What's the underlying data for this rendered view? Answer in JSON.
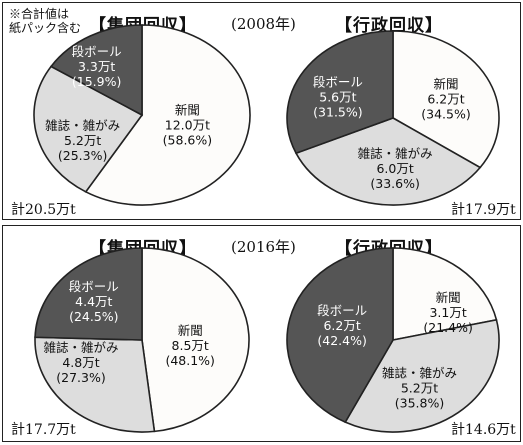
{
  "note": [
    "※合計値は",
    "紙パック含む"
  ],
  "titles": {
    "group": "【集団回収】",
    "admin": "【行政回収】"
  },
  "colors": {
    "newspaper": "#fdfcfa",
    "magazine": "#dddddd",
    "cardboard": "#555555",
    "stroke": "#222222",
    "dark_text": "#ffffff",
    "light_text": "#111111"
  },
  "panels": [
    {
      "year": "(2008年)",
      "group_total": "計20.5万t",
      "admin_total": "計17.9万t"
    },
    {
      "year": "(2016年)",
      "group_total": "計17.7万t",
      "admin_total": "計14.6万t"
    }
  ],
  "chart_data": [
    {
      "type": "pie",
      "title": "【集団回収】",
      "subtitle": "(2008年)",
      "total": "計20.5万t",
      "slices": [
        {
          "label": "新聞",
          "amount": "12.0万t",
          "value": 58.6,
          "pct": "(58.6%)",
          "category": "newspaper"
        },
        {
          "label": "雑誌・雑がみ",
          "amount": "5.2万t",
          "value": 25.3,
          "pct": "(25.3%)",
          "category": "magazine"
        },
        {
          "label": "段ボール",
          "amount": "3.3万t",
          "value": 15.9,
          "pct": "(15.9%)",
          "category": "cardboard"
        }
      ]
    },
    {
      "type": "pie",
      "title": "【行政回収】",
      "subtitle": "(2008年)",
      "total": "計17.9万t",
      "slices": [
        {
          "label": "新聞",
          "amount": "6.2万t",
          "value": 34.5,
          "pct": "(34.5%)",
          "category": "newspaper"
        },
        {
          "label": "雑誌・雑がみ",
          "amount": "6.0万t",
          "value": 33.6,
          "pct": "(33.6%)",
          "category": "magazine"
        },
        {
          "label": "段ボール",
          "amount": "5.6万t",
          "value": 31.5,
          "pct": "(31.5%)",
          "category": "cardboard"
        }
      ]
    },
    {
      "type": "pie",
      "title": "【集団回収】",
      "subtitle": "(2016年)",
      "total": "計17.7万t",
      "slices": [
        {
          "label": "新聞",
          "amount": "8.5万t",
          "value": 48.1,
          "pct": "(48.1%)",
          "category": "newspaper"
        },
        {
          "label": "雑誌・雑がみ",
          "amount": "4.8万t",
          "value": 27.3,
          "pct": "(27.3%)",
          "category": "magazine"
        },
        {
          "label": "段ボール",
          "amount": "4.4万t",
          "value": 24.5,
          "pct": "(24.5%)",
          "category": "cardboard"
        }
      ]
    },
    {
      "type": "pie",
      "title": "【行政回収】",
      "subtitle": "(2016年)",
      "total": "計14.6万t",
      "slices": [
        {
          "label": "新聞",
          "amount": "3.1万t",
          "value": 21.4,
          "pct": "(21.4%)",
          "category": "newspaper"
        },
        {
          "label": "雑誌・雑がみ",
          "amount": "5.2万t",
          "value": 35.8,
          "pct": "(35.8%)",
          "category": "magazine"
        },
        {
          "label": "段ボール",
          "amount": "6.2万t",
          "value": 42.4,
          "pct": "(42.4%)",
          "category": "cardboard"
        }
      ]
    }
  ]
}
